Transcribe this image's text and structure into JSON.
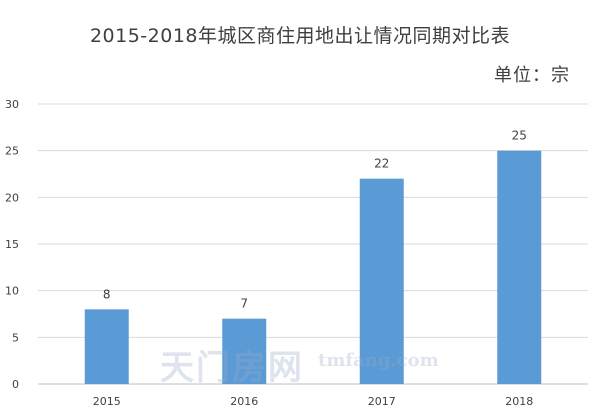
{
  "chart_data": {
    "type": "bar",
    "title": "2015-2018年城区商住用地出让情况同期对比表",
    "unit_label": "单位：宗",
    "xlabel": "",
    "ylabel": "",
    "categories": [
      "2015",
      "2016",
      "2017",
      "2018"
    ],
    "values": [
      8,
      7,
      22,
      25
    ],
    "data_labels": [
      "8",
      "7",
      "22",
      "25"
    ],
    "ylim": [
      0,
      30
    ],
    "yticks": [
      0,
      5,
      10,
      15,
      20,
      25,
      30
    ],
    "ytick_labels": [
      "0",
      "5",
      "10",
      "15",
      "20",
      "25",
      "30"
    ],
    "grid": true,
    "bar_color": "#5b9bd5",
    "grid_color": "#d9d9d9",
    "axis_color": "#bfbfbf",
    "text_color": "#404040"
  },
  "watermark": {
    "logo_text": "天门房网",
    "url_text": "tmfang.com"
  }
}
